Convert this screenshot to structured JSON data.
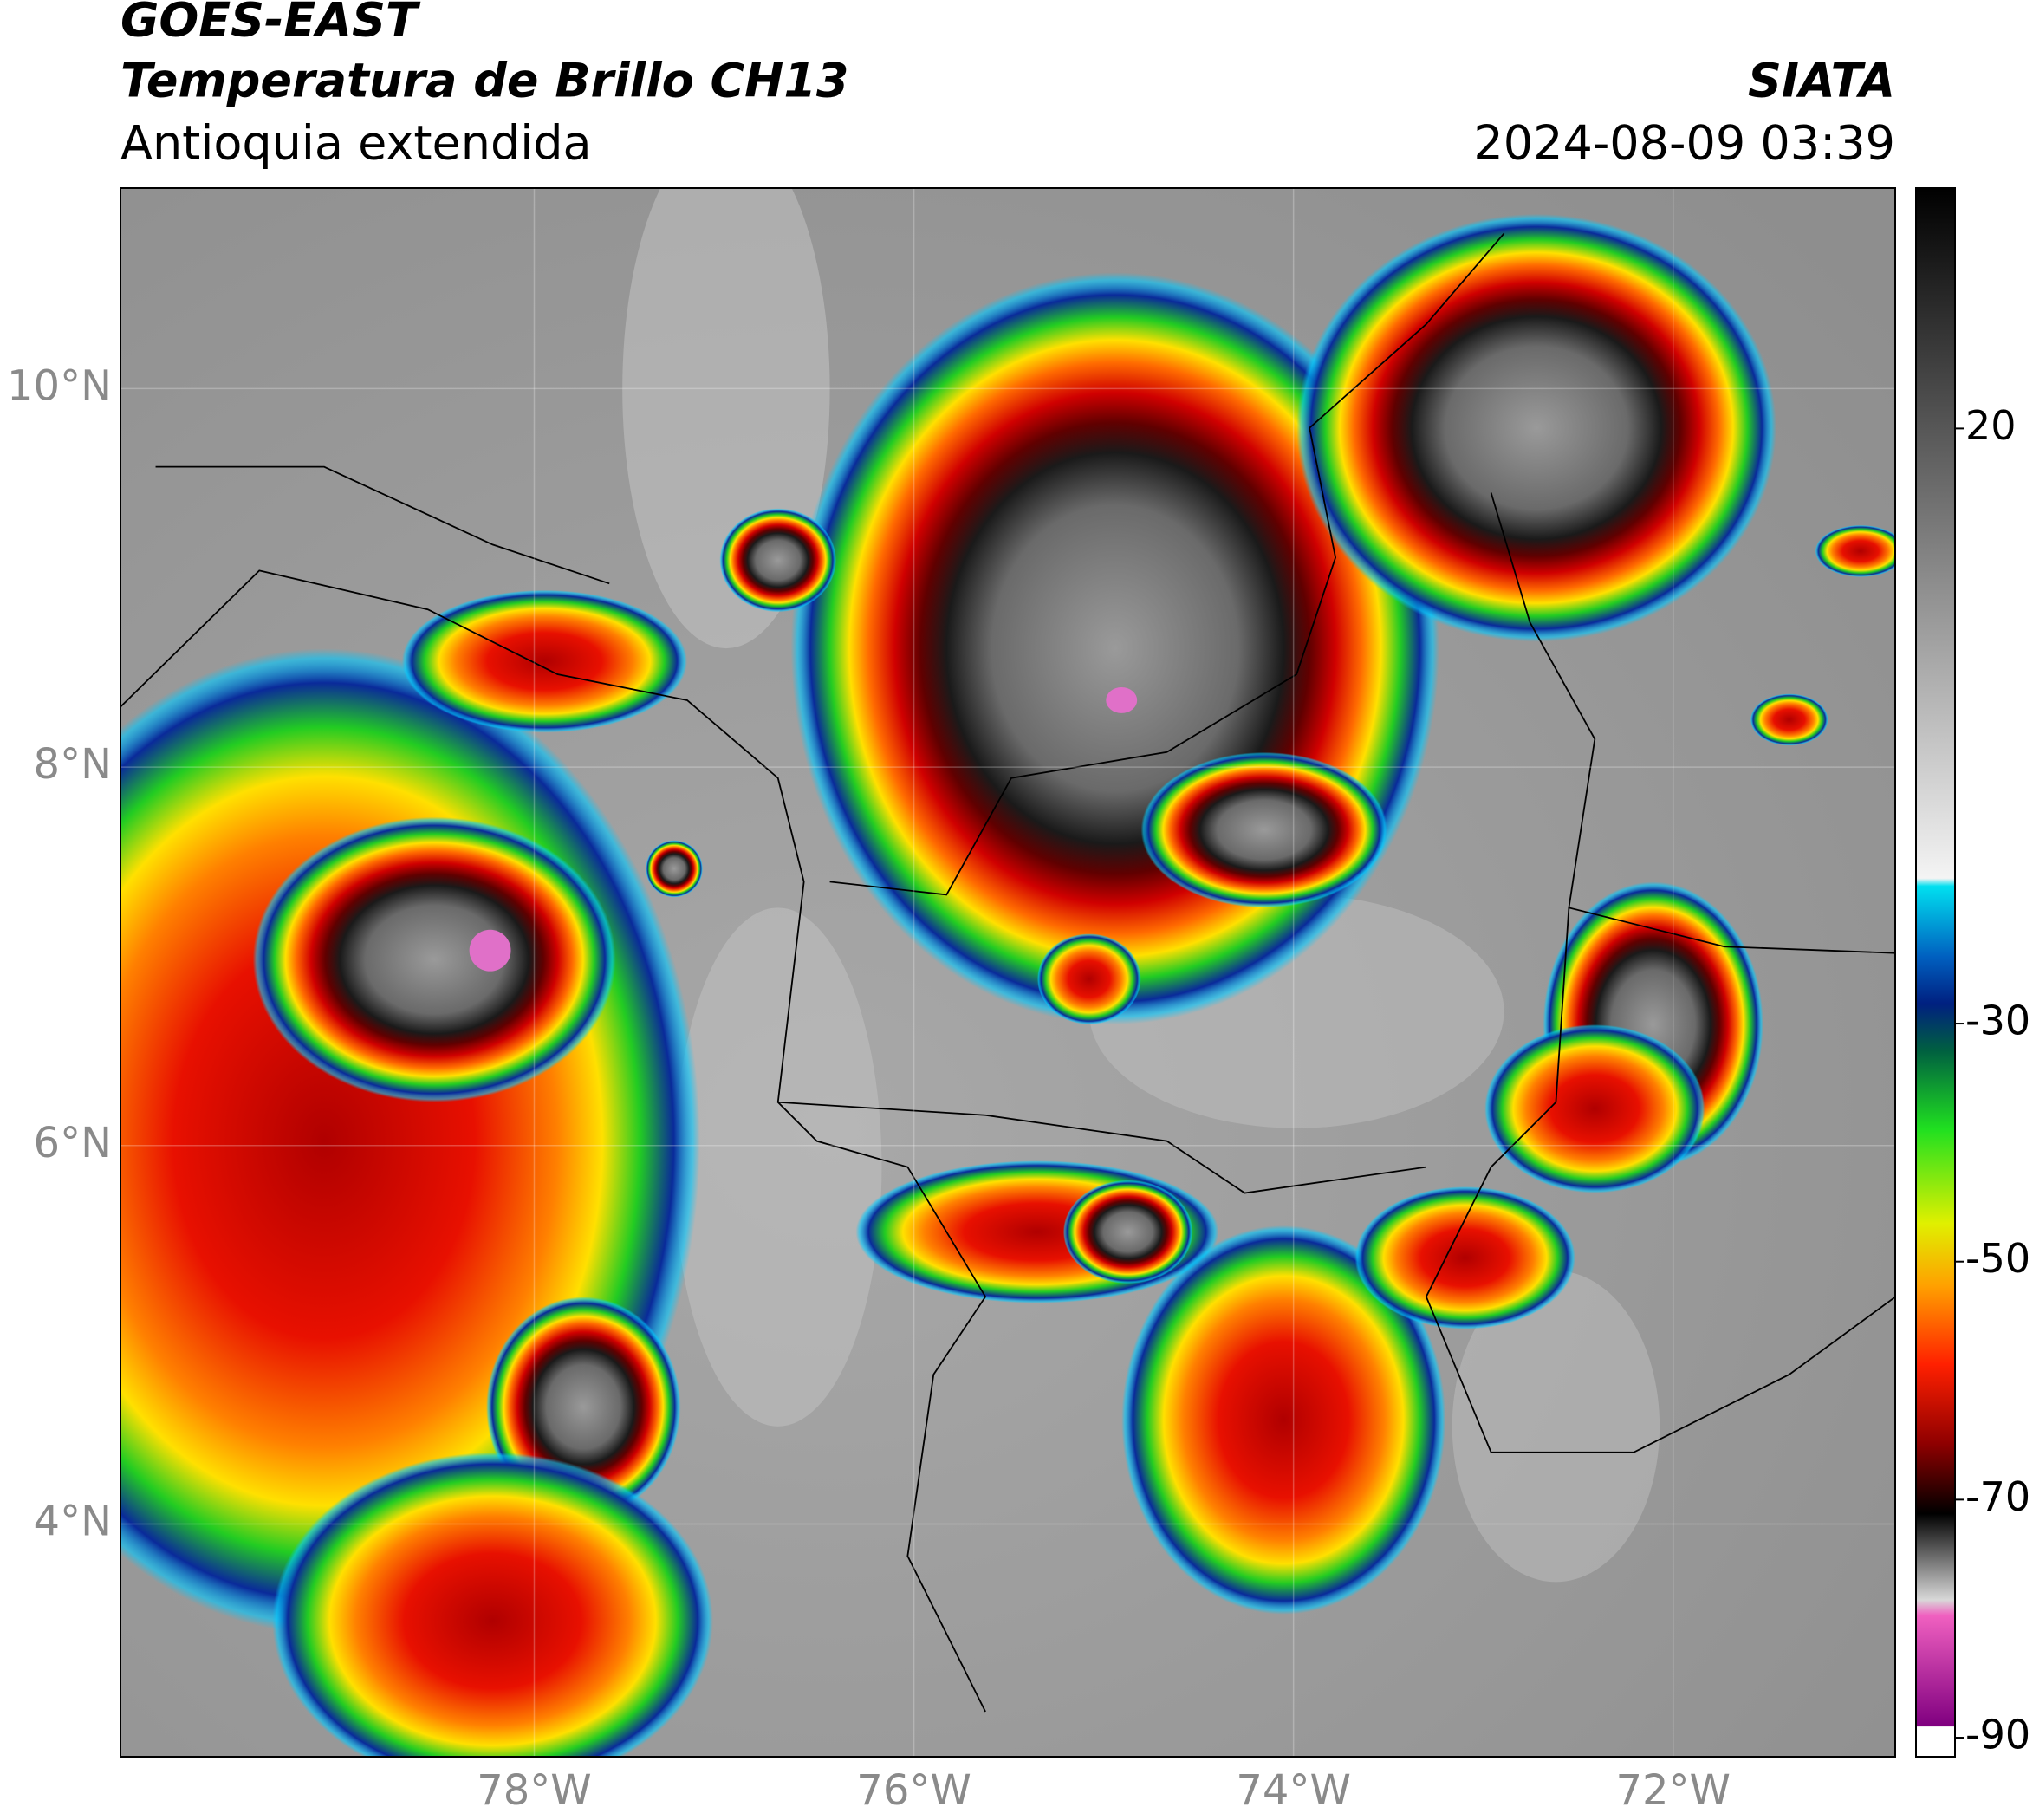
{
  "header": {
    "title": "GOES-EAST",
    "subtitle": "Temperatura de Brillo CH13",
    "region": "Antioquia extendida",
    "source": "SIATA",
    "datetime": "2024-08-09 03:39"
  },
  "map": {
    "xlim": [
      -80.18,
      -70.83
    ],
    "ylim": [
      2.77,
      11.06
    ],
    "xticks": [
      {
        "value": -78,
        "label": "78°W"
      },
      {
        "value": -76,
        "label": "76°W"
      },
      {
        "value": -74,
        "label": "74°W"
      },
      {
        "value": -72,
        "label": "72°W"
      }
    ],
    "yticks": [
      {
        "value": 10,
        "label": "10°N"
      },
      {
        "value": 8,
        "label": "8°N"
      },
      {
        "value": 6,
        "label": "6°N"
      },
      {
        "value": 4,
        "label": "4°N"
      }
    ]
  },
  "colorbar": {
    "lim": [
      -91.6,
      40.2
    ],
    "ticks": [
      20,
      -30,
      -50,
      -70,
      -90
    ]
  }
}
